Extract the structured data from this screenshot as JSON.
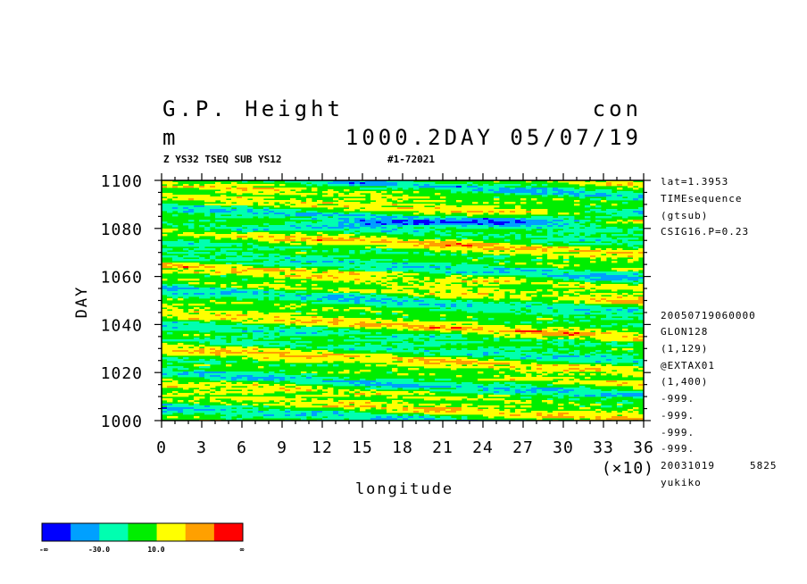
{
  "chart_data": {
    "type": "heatmap",
    "title_left": [
      "G.P. Height",
      "m"
    ],
    "title_right": [
      "con",
      "1000.2DAY 05/07/19"
    ],
    "subtitle_left": "Z YS32 TSEQ SUB YS12",
    "subtitle_right": "#1-72021",
    "xlabel": "longitude",
    "ylabel": "DAY",
    "x_scale_label": "(×10)",
    "xlim": [
      0,
      36
    ],
    "ylim": [
      1000,
      1100
    ],
    "x_ticks": [
      "0",
      "3",
      "6",
      "9",
      "12",
      "15",
      "18",
      "21",
      "24",
      "27",
      "30",
      "33",
      "36"
    ],
    "x_tick_values": [
      0,
      3,
      6,
      9,
      12,
      15,
      18,
      21,
      24,
      27,
      30,
      33,
      36
    ],
    "y_ticks": [
      "1000",
      "1020",
      "1040",
      "1060",
      "1080",
      "1100"
    ],
    "y_tick_values": [
      1000,
      1020,
      1040,
      1060,
      1080,
      1100
    ],
    "side_info_top": [
      "lat=1.3953",
      "TIMEsequence",
      "(gtsub)",
      "CSIG16.P=0.23"
    ],
    "side_info_bottom": [
      "20050719060000",
      "GLON128",
      "(1,129)",
      "@EXTAX01",
      "(1,400)",
      "-999.",
      "-999.",
      "-999.",
      "-999."
    ],
    "footer_left": "20031019",
    "footer_num": "5825",
    "footer_user": "yukiko",
    "colorbar": {
      "colors": [
        "#0000ff",
        "#00a0ff",
        "#00ffb0",
        "#00ee00",
        "#ffff00",
        "#ffa000",
        "#ff0000"
      ],
      "labels": [
        "-∞",
        "-30.0",
        "10.0",
        "∞"
      ]
    },
    "dominant_level": "green",
    "streaks": [
      {
        "desc": "blue band",
        "x0": 0,
        "d0": 1080,
        "x1": 36,
        "d1": 1087,
        "level": "blue"
      },
      {
        "desc": "low band mid",
        "x0": 6,
        "d0": 1072,
        "x1": 36,
        "d1": 1078,
        "level": "cyan"
      },
      {
        "desc": "high band",
        "x0": 14,
        "d0": 1080,
        "x1": 27,
        "d1": 1085,
        "level": "orange"
      }
    ]
  }
}
